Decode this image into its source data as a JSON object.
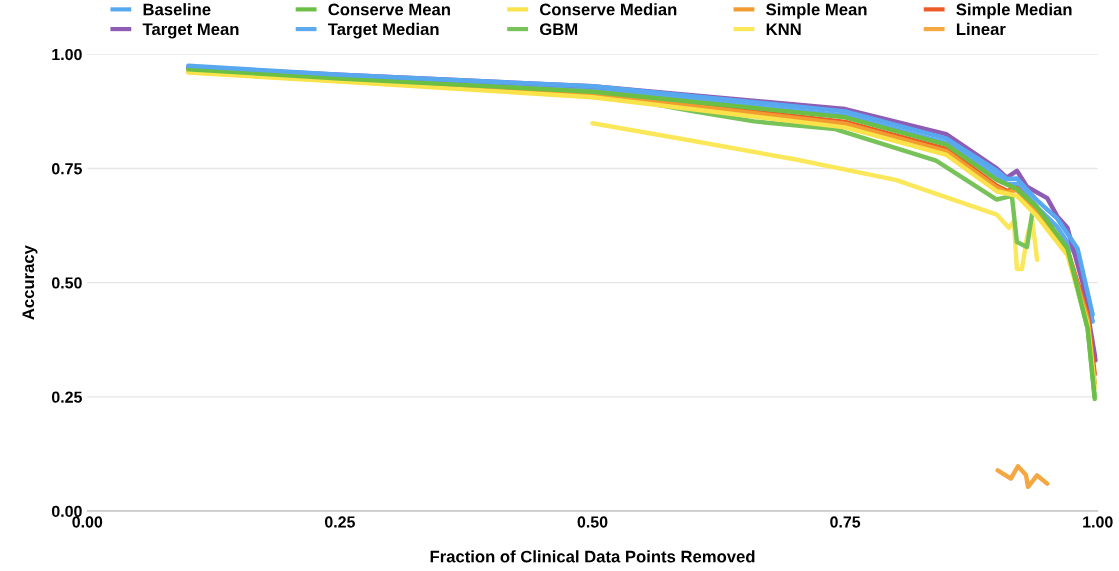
{
  "chart_data": {
    "type": "line",
    "xlabel": "Fraction of Clinical Data Points Removed",
    "ylabel": "Accuracy",
    "xlim": [
      0,
      1
    ],
    "xticks": [
      {
        "value": 0,
        "label": "0.00"
      },
      {
        "value": 0.25,
        "label": "0.25"
      },
      {
        "value": 0.5,
        "label": "0.50"
      },
      {
        "value": 0.75,
        "label": "0.75"
      },
      {
        "value": 1,
        "label": "1.00"
      }
    ],
    "ylim": [
      0,
      1
    ],
    "yticks": [
      {
        "value": 0,
        "label": "0.00"
      },
      {
        "value": 0.25,
        "label": "0.25"
      },
      {
        "value": 0.5,
        "label": "0.50"
      },
      {
        "value": 0.75,
        "label": "0.75"
      },
      {
        "value": 1,
        "label": "1.00"
      }
    ],
    "grid": "y",
    "legend": "top",
    "line_style": "solid",
    "marker": "none",
    "series": [
      {
        "name": "Baseline",
        "color": "#58a8ef",
        "x": [
          0.1,
          0.25,
          0.5,
          0.75,
          0.85,
          0.9,
          0.91,
          0.92,
          0.94,
          0.96,
          0.98,
          0.995
        ],
        "values": [
          0.975,
          0.955,
          0.93,
          0.875,
          0.816,
          0.745,
          0.727,
          0.728,
          0.68,
          0.64,
          0.575,
          0.43
        ]
      },
      {
        "name": "Conserve Mean",
        "color": "#6cbf45",
        "x": [
          0.1,
          0.25,
          0.5,
          0.75,
          0.85,
          0.9,
          0.92,
          0.94,
          0.97,
          0.99,
          0.997
        ],
        "values": [
          0.967,
          0.947,
          0.918,
          0.862,
          0.802,
          0.725,
          0.705,
          0.665,
          0.575,
          0.4,
          0.25
        ]
      },
      {
        "name": "Conserve Median",
        "color": "#f9e24a",
        "x": [
          0.1,
          0.25,
          0.5,
          0.75,
          0.85,
          0.9,
          0.92,
          0.94,
          0.97,
          0.99,
          0.997
        ],
        "values": [
          0.96,
          0.94,
          0.906,
          0.84,
          0.78,
          0.7,
          0.69,
          0.645,
          0.56,
          0.41,
          0.27
        ]
      },
      {
        "name": "Simple Mean",
        "color": "#f29b30",
        "x": [
          0.1,
          0.25,
          0.5,
          0.75,
          0.85,
          0.9,
          0.91,
          0.92,
          0.94,
          0.97,
          0.99,
          0.997
        ],
        "values": [
          0.963,
          0.943,
          0.912,
          0.848,
          0.788,
          0.708,
          0.698,
          0.703,
          0.655,
          0.57,
          0.42,
          0.28
        ]
      },
      {
        "name": "Simple Median",
        "color": "#ec5a28",
        "x": [
          0.5,
          0.75,
          0.85,
          0.9,
          0.91,
          0.92,
          0.94,
          0.97,
          0.99,
          0.997
        ],
        "values": [
          0.914,
          0.852,
          0.793,
          0.712,
          0.701,
          0.707,
          0.66,
          0.572,
          0.43,
          0.3
        ]
      },
      {
        "name": "Target Mean",
        "color": "#8e5bb5",
        "x": [
          0.1,
          0.25,
          0.5,
          0.75,
          0.85,
          0.9,
          0.91,
          0.92,
          0.93,
          0.95,
          0.96,
          0.97,
          0.985,
          0.998
        ],
        "values": [
          0.972,
          0.955,
          0.93,
          0.88,
          0.825,
          0.75,
          0.73,
          0.745,
          0.71,
          0.685,
          0.645,
          0.62,
          0.5,
          0.33
        ]
      },
      {
        "name": "Target Median",
        "color": "#5eaaf0",
        "x": [
          0.1,
          0.25,
          0.5,
          0.75,
          0.85,
          0.9,
          0.91,
          0.92,
          0.94,
          0.96,
          0.98,
          0.995
        ],
        "values": [
          0.969,
          0.949,
          0.922,
          0.866,
          0.806,
          0.735,
          0.716,
          0.716,
          0.665,
          0.622,
          0.555,
          0.415
        ]
      },
      {
        "name": "GBM",
        "color": "#77c35a",
        "x": [
          0.5,
          0.6,
          0.66,
          0.74,
          0.84,
          0.9,
          0.915,
          0.92,
          0.93,
          0.935,
          0.94,
          0.97,
          0.99,
          0.997
        ],
        "values": [
          0.915,
          0.875,
          0.853,
          0.836,
          0.767,
          0.682,
          0.69,
          0.589,
          0.578,
          0.65,
          0.66,
          0.57,
          0.4,
          0.245
        ]
      },
      {
        "name": "KNN",
        "color": "#fbe85a",
        "x": [
          0.5,
          0.6,
          0.7,
          0.8,
          0.9,
          0.912,
          0.917,
          0.92,
          0.925,
          0.93,
          0.935,
          0.94
        ],
        "values": [
          0.849,
          0.81,
          0.77,
          0.725,
          0.649,
          0.62,
          0.635,
          0.53,
          0.53,
          0.6,
          0.64,
          0.55
        ]
      },
      {
        "name": "Linear",
        "color": "#f5a742",
        "x": [
          0.901,
          0.914,
          0.921,
          0.929,
          0.931,
          0.94,
          0.95
        ],
        "values": [
          0.089,
          0.071,
          0.098,
          0.079,
          0.053,
          0.078,
          0.06
        ]
      }
    ]
  }
}
